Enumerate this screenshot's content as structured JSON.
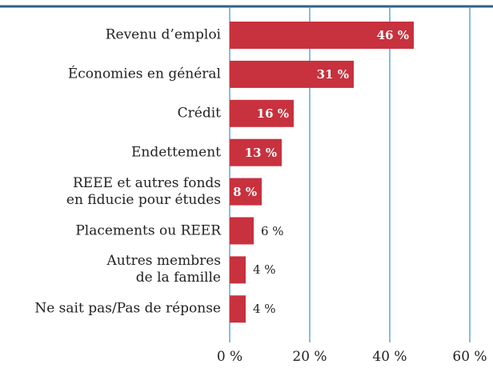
{
  "chart_data": {
    "type": "barh",
    "categories": [
      "Revenu d’emploi",
      "Économies en général",
      "Crédit",
      "Endettement",
      "REEE et autres fonds\nen fiducie pour études",
      "Placements ou REER",
      "Autres membres\nde la famille",
      "Ne sait pas/Pas de réponse"
    ],
    "values": [
      46,
      31,
      16,
      13,
      8,
      6,
      4,
      4
    ],
    "value_labels": [
      "46 %",
      "31 %",
      "16 %",
      "13 %",
      "8 %",
      "6 %",
      "4 %",
      "4 %"
    ],
    "color": "#c8313e",
    "xlim": [
      0,
      60
    ],
    "xticks": [
      {
        "value": 0,
        "label": "0 %"
      },
      {
        "value": 20,
        "label": "20 %"
      },
      {
        "value": 40,
        "label": "40 %"
      },
      {
        "value": 60,
        "label": "60 %"
      }
    ],
    "grid": true
  }
}
